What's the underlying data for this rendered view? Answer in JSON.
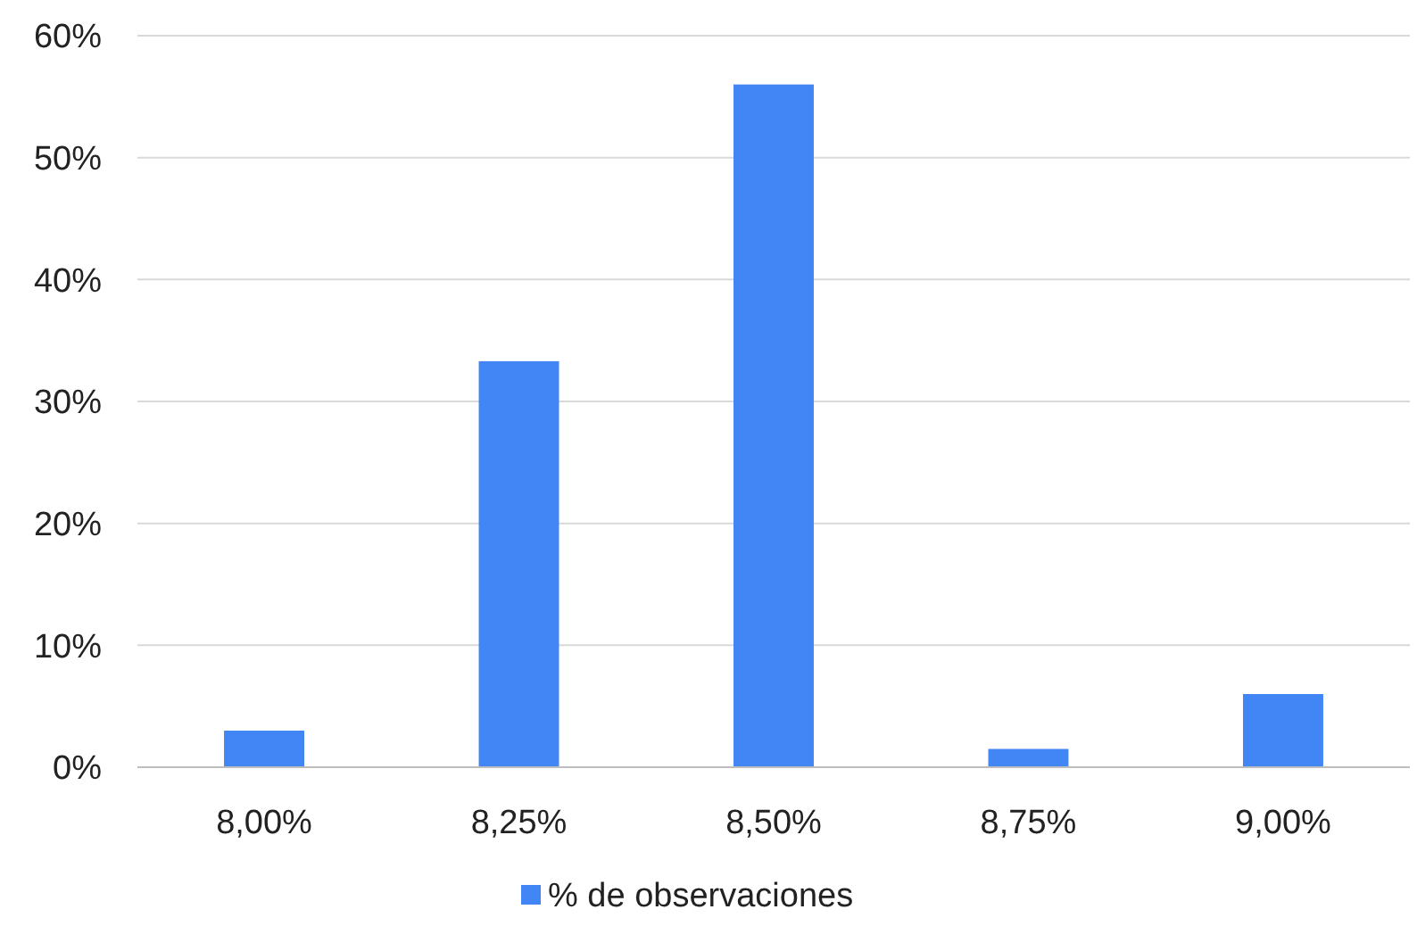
{
  "chart_data": {
    "type": "bar",
    "categories": [
      "8,00%",
      "8,25%",
      "8,50%",
      "8,75%",
      "9,00%"
    ],
    "series": [
      {
        "name": "% de observaciones",
        "color": "#4285f4",
        "values": [
          3,
          33.3,
          56,
          1.5,
          6
        ]
      }
    ],
    "ylim": [
      0,
      60
    ],
    "yticks": [
      {
        "value": 0,
        "label": "0%"
      },
      {
        "value": 10,
        "label": "10%"
      },
      {
        "value": 20,
        "label": "20%"
      },
      {
        "value": 30,
        "label": "30%"
      },
      {
        "value": 40,
        "label": "40%"
      },
      {
        "value": 50,
        "label": "50%"
      },
      {
        "value": 60,
        "label": "60%"
      }
    ],
    "grid": "y",
    "legend": "bottom"
  }
}
